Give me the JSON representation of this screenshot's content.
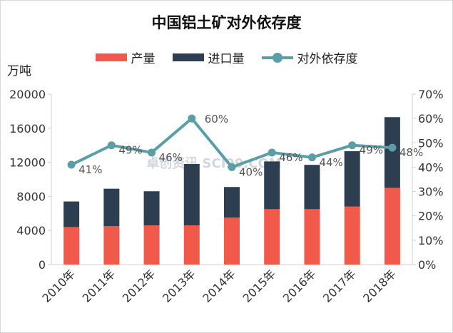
{
  "chart_data": {
    "type": "bar",
    "stacked": true,
    "title": "中国铝土矿对外依存度",
    "ylabel": "万吨",
    "categories": [
      "2010年",
      "2011年",
      "2012年",
      "2013年",
      "2014年",
      "2015年",
      "2016年",
      "2017年",
      "2018年"
    ],
    "series": [
      {
        "name": "产量",
        "type": "bar",
        "axis": "left",
        "color": "#f15a4a",
        "values": [
          4400,
          4500,
          4600,
          4600,
          5500,
          6500,
          6500,
          6800,
          9000
        ]
      },
      {
        "name": "进口量",
        "type": "bar",
        "axis": "left",
        "color": "#2c3e4f",
        "values": [
          3000,
          4400,
          4000,
          7200,
          3600,
          5600,
          5200,
          6500,
          8300
        ]
      },
      {
        "name": "对外依存度",
        "type": "line",
        "axis": "right",
        "color": "#5b9ea6",
        "values": [
          41,
          49,
          46,
          60,
          40,
          46,
          44,
          49,
          48
        ],
        "labels": [
          "41%",
          "49%",
          "46%",
          "60%",
          "40%",
          "46%",
          "44%",
          "49%",
          "48%"
        ]
      }
    ],
    "ylim": [
      0,
      20000
    ],
    "yticks": [
      "0",
      "4000",
      "8000",
      "12000",
      "16000",
      "20000"
    ],
    "y2lim": [
      0,
      70
    ],
    "y2ticks": [
      "0%",
      "10%",
      "20%",
      "30%",
      "40%",
      "50%",
      "60%",
      "70%"
    ],
    "legend_position": "top-center",
    "grid": false
  },
  "watermark": "卓创资讯 SCI99.COM"
}
